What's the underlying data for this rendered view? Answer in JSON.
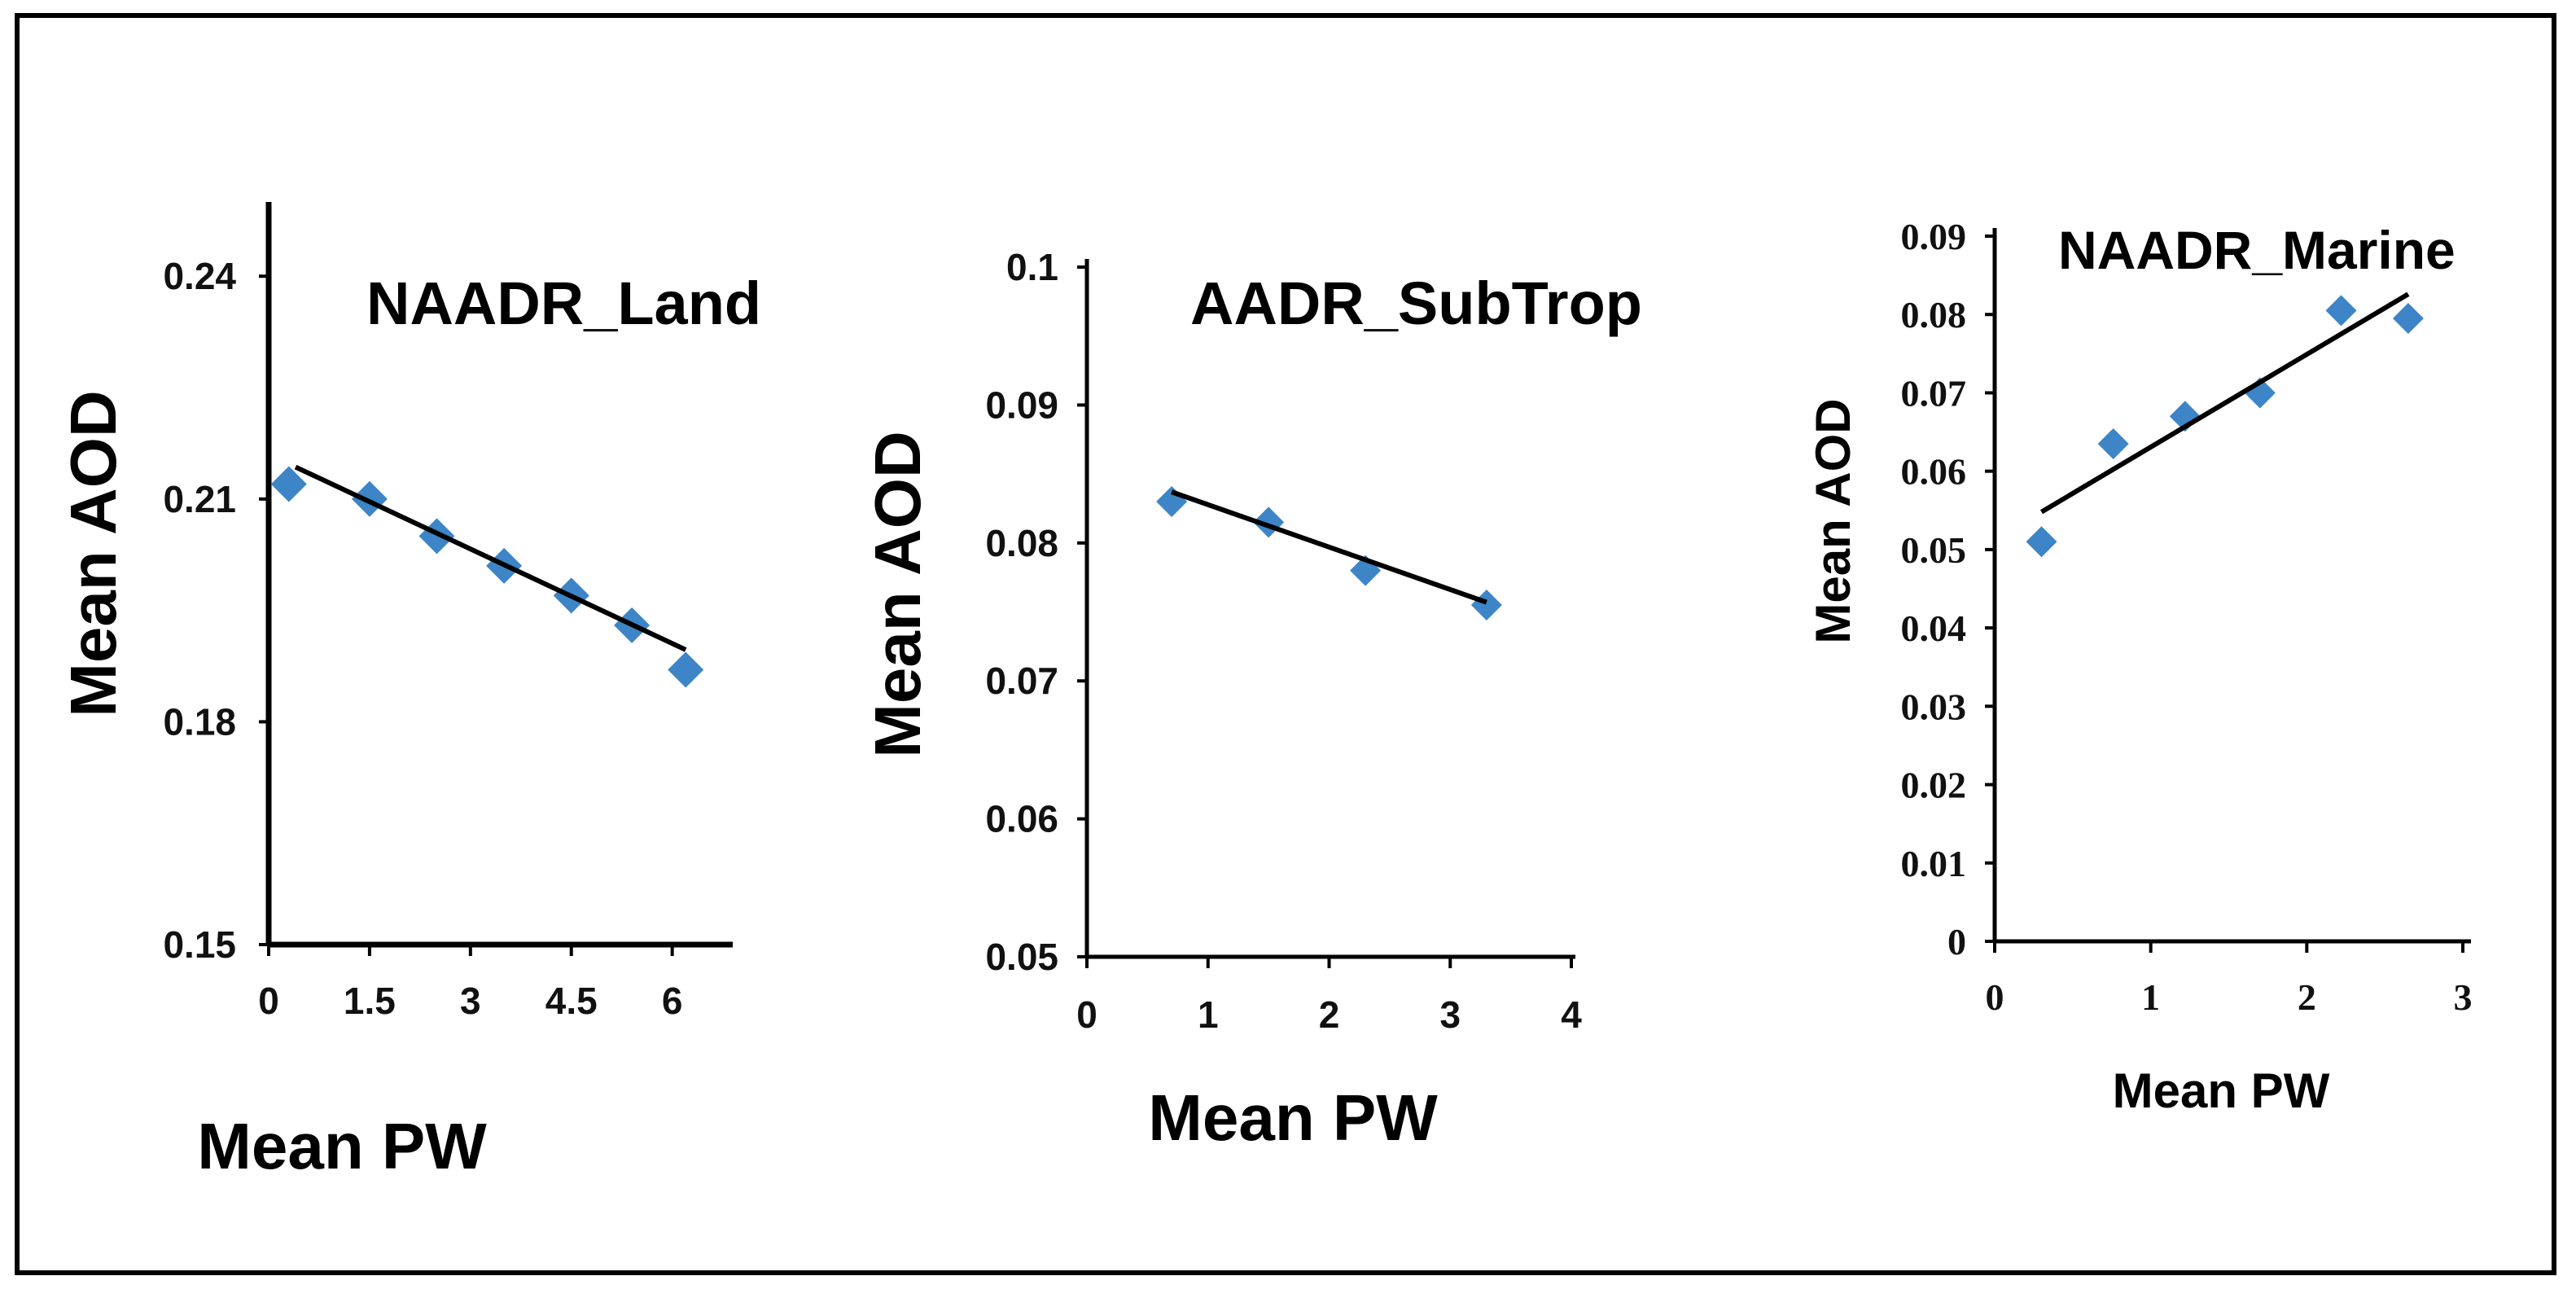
{
  "colors": {
    "marker": "#3d85c6",
    "axis": "#000000",
    "trend": "#000000"
  },
  "chart_data": [
    {
      "type": "scatter",
      "title": "NAADR_Land",
      "xlabel": "Mean PW",
      "ylabel": "Mean AOD",
      "xlim": [
        0,
        6.9
      ],
      "ylim": [
        0.15,
        0.25
      ],
      "xticks": [
        "0",
        "1.5",
        "3",
        "4.5",
        "6"
      ],
      "yticks": [
        "0.15",
        "0.18",
        "0.21",
        "0.24"
      ],
      "x": [
        0.3,
        1.5,
        2.5,
        3.5,
        4.5,
        5.4,
        6.2
      ],
      "y": [
        0.212,
        0.21,
        0.205,
        0.201,
        0.197,
        0.193,
        0.187
      ],
      "trend": [
        [
          0.4,
          0.2143
        ],
        [
          6.2,
          0.1897
        ]
      ]
    },
    {
      "type": "scatter",
      "title": "AADR_SubTrop",
      "xlabel": "Mean PW",
      "ylabel": "Mean AOD",
      "xlim": [
        0,
        4
      ],
      "ylim": [
        0.05,
        0.1
      ],
      "xticks": [
        "0",
        "1",
        "2",
        "3",
        "4"
      ],
      "yticks": [
        "0.05",
        "0.06",
        "0.07",
        "0.08",
        "0.09",
        "0.1"
      ],
      "x": [
        0.7,
        1.5,
        2.3,
        3.3
      ],
      "y": [
        0.083,
        0.0815,
        0.078,
        0.0755
      ],
      "trend": [
        [
          0.7,
          0.0837
        ],
        [
          3.3,
          0.0757
        ]
      ]
    },
    {
      "type": "scatter",
      "title": "NAADR_Marine",
      "xlabel": "Mean PW",
      "ylabel": "Mean AOD",
      "xlim": [
        0,
        3
      ],
      "ylim": [
        0,
        0.09
      ],
      "xticks": [
        "0",
        "1",
        "2",
        "3"
      ],
      "yticks": [
        "0",
        "0.01",
        "0.02",
        "0.03",
        "0.04",
        "0.05",
        "0.06",
        "0.07",
        "0.08",
        "0.09"
      ],
      "x": [
        0.3,
        0.76,
        1.22,
        1.7,
        2.22,
        2.65
      ],
      "y": [
        0.051,
        0.0635,
        0.067,
        0.07,
        0.0805,
        0.0795
      ],
      "trend": [
        [
          0.3,
          0.0548
        ],
        [
          2.65,
          0.0826
        ]
      ]
    }
  ]
}
